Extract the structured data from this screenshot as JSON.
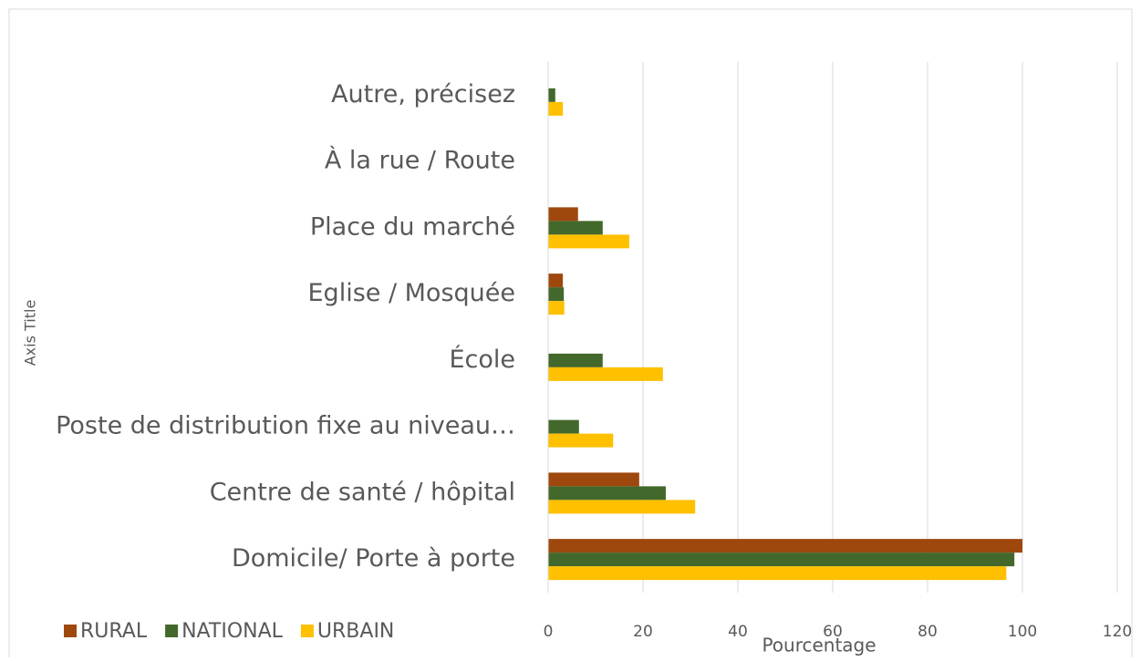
{
  "chart_data": {
    "type": "hbar",
    "x_label": "Pourcentage",
    "y_label": "Axis Title",
    "categories": [
      "Autre, précisez",
      "À la rue / Route",
      "Place du marché",
      "Eglise / Mosquée",
      "École",
      "Poste de distribution fixe au niveau…",
      "Centre de santé / hôpital",
      "Domicile/ Porte à porte"
    ],
    "series": [
      {
        "name": "RURAL",
        "color": "#9e480e",
        "values": [
          0,
          0,
          6.3,
          3.1,
          0,
          0,
          19.2,
          100
        ]
      },
      {
        "name": "NATIONAL",
        "color": "#43682b",
        "values": [
          1.5,
          0,
          11.5,
          3.3,
          11.5,
          6.5,
          24.8,
          98.3
        ]
      },
      {
        "name": "URBAIN",
        "color": "#ffc000",
        "values": [
          3.1,
          0,
          17.1,
          3.4,
          24.2,
          13.7,
          31,
          96.6
        ]
      }
    ],
    "xlim": [
      0,
      120
    ],
    "xticks": [
      0,
      20,
      40,
      60,
      80,
      100,
      120
    ],
    "grid": true,
    "legend": "bottom-left"
  }
}
